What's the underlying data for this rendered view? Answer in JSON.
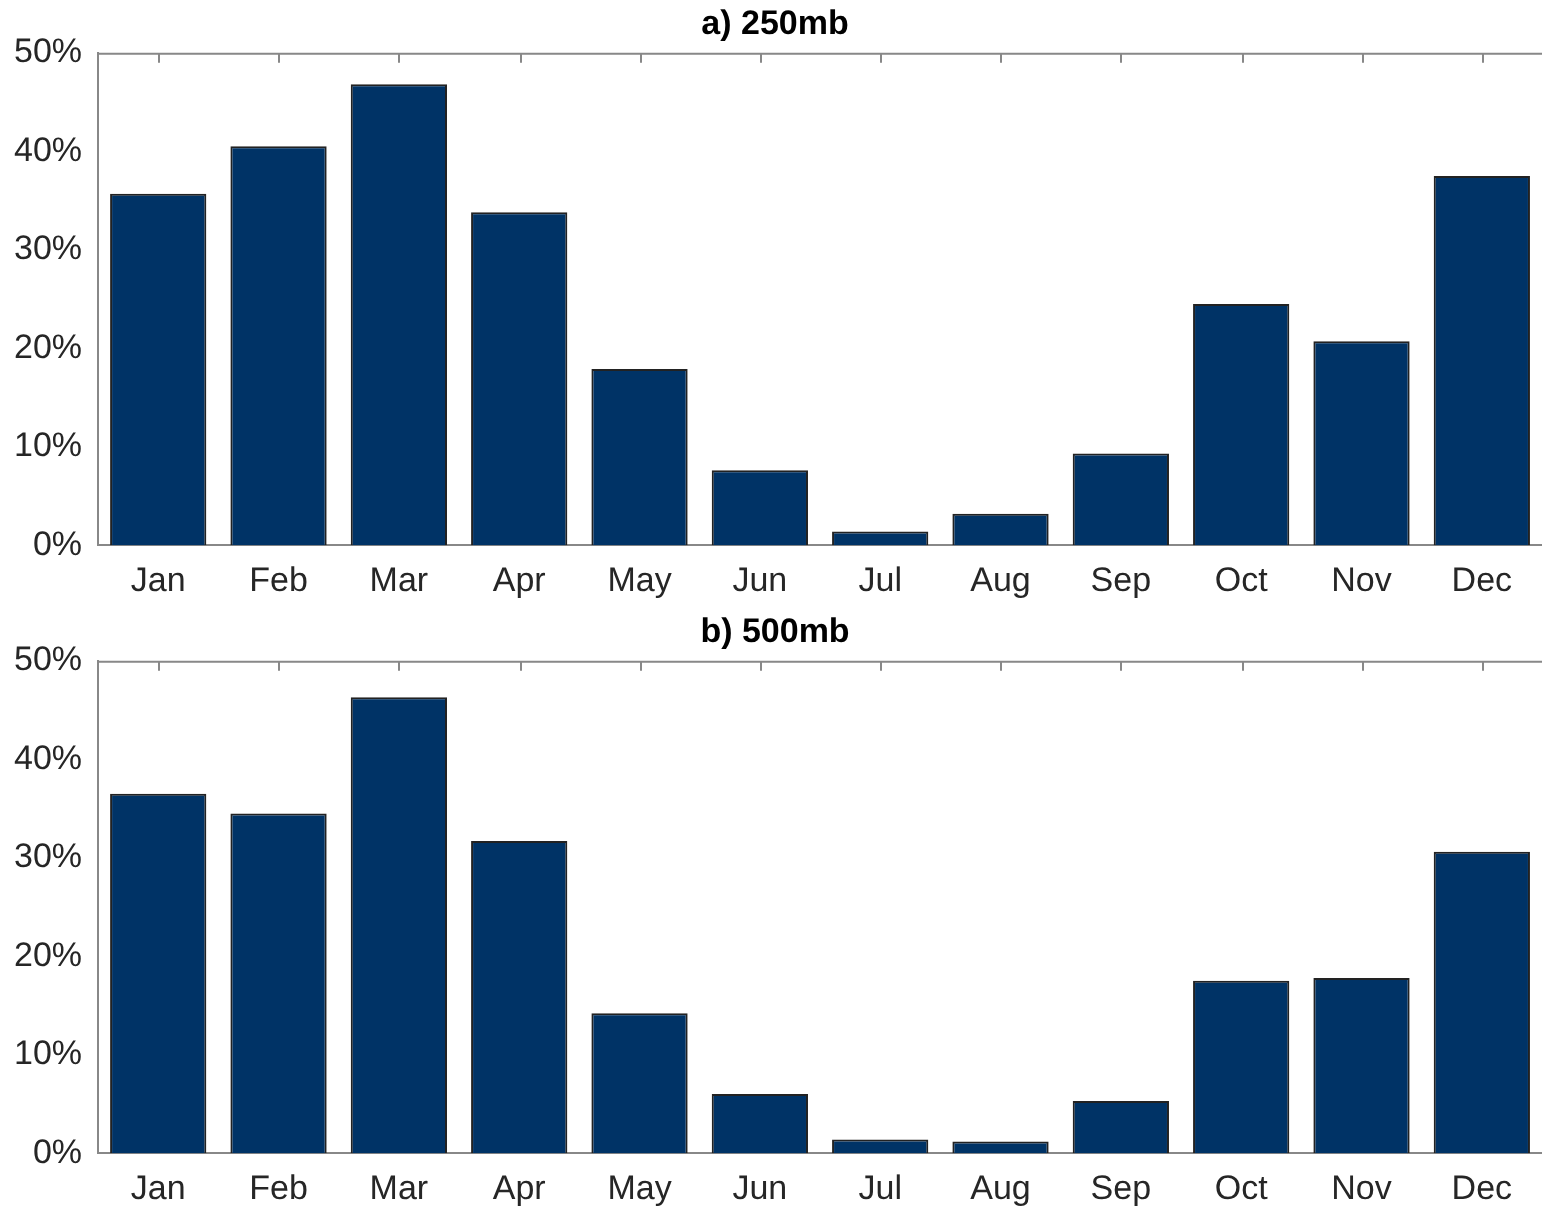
{
  "chart_data": [
    {
      "type": "bar",
      "title": "a) 250mb",
      "categories": [
        "Jan",
        "Feb",
        "Mar",
        "Apr",
        "May",
        "Jun",
        "Jul",
        "Aug",
        "Sep",
        "Oct",
        "Nov",
        "Dec"
      ],
      "values": [
        35.7,
        40.5,
        46.8,
        33.8,
        17.9,
        7.6,
        1.4,
        3.2,
        9.3,
        24.5,
        20.7,
        37.5
      ],
      "color": "#003366",
      "ylim": [
        0,
        50
      ],
      "yticks": [
        {
          "value": 0,
          "label": "0%"
        },
        {
          "value": 10,
          "label": "10%"
        },
        {
          "value": 20,
          "label": "20%"
        },
        {
          "value": 30,
          "label": "30%"
        },
        {
          "value": 40,
          "label": "40%"
        },
        {
          "value": 50,
          "label": "50%"
        }
      ]
    },
    {
      "type": "bar",
      "title": "b) 500mb",
      "categories": [
        "Jan",
        "Feb",
        "Mar",
        "Apr",
        "May",
        "Jun",
        "Jul",
        "Aug",
        "Sep",
        "Oct",
        "Nov",
        "Dec"
      ],
      "values": [
        36.5,
        34.5,
        46.3,
        31.7,
        14.2,
        6.0,
        1.4,
        1.2,
        5.3,
        17.5,
        17.8,
        30.6
      ],
      "color": "#003366",
      "ylim": [
        0,
        50
      ],
      "yticks": [
        {
          "value": 0,
          "label": "0%"
        },
        {
          "value": 10,
          "label": "10%"
        },
        {
          "value": 20,
          "label": "20%"
        },
        {
          "value": 30,
          "label": "30%"
        },
        {
          "value": 40,
          "label": "40%"
        },
        {
          "value": 50,
          "label": "50%"
        }
      ]
    }
  ]
}
